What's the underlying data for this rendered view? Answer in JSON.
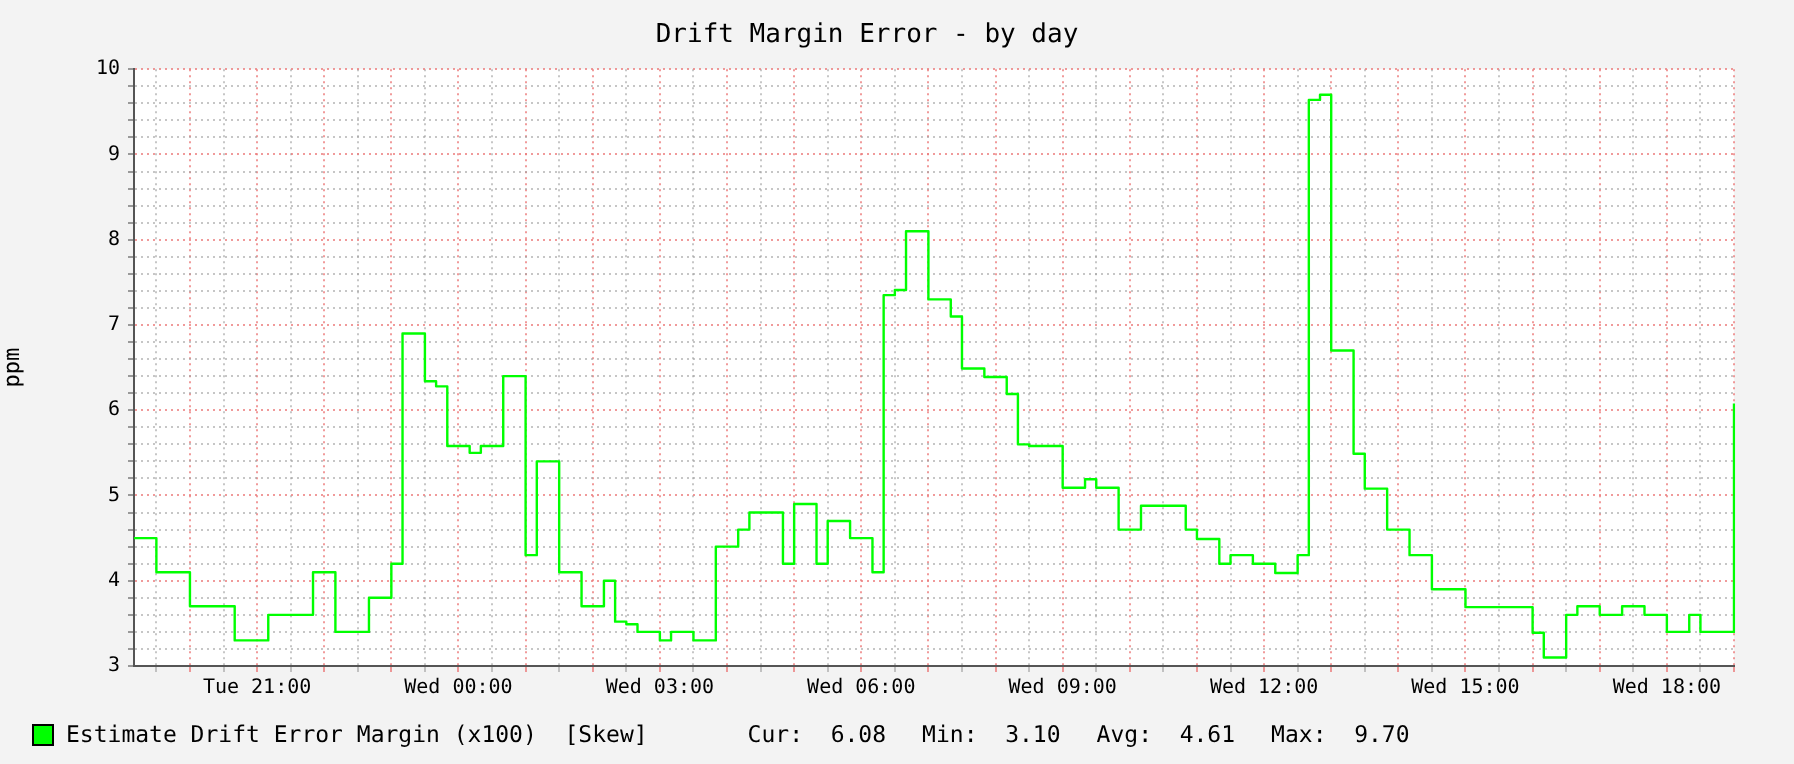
{
  "chart_data": {
    "type": "step",
    "title": "Drift Margin Error - by day",
    "ylabel": "ppm",
    "categories": [
      null,
      null,
      null,
      null,
      null,
      null,
      null,
      null,
      null,
      null,
      null,
      "Tue 21:00",
      null,
      null,
      null,
      null,
      null,
      null,
      null,
      null,
      null,
      null,
      null,
      null,
      null,
      null,
      null,
      null,
      null,
      "Wed 00:00",
      null,
      null,
      null,
      null,
      null,
      null,
      null,
      null,
      null,
      null,
      null,
      null,
      null,
      null,
      null,
      null,
      null,
      "Wed 03:00",
      null,
      null,
      null,
      null,
      null,
      null,
      null,
      null,
      null,
      null,
      null,
      null,
      null,
      null,
      null,
      null,
      null,
      "Wed 06:00",
      null,
      null,
      null,
      null,
      null,
      null,
      null,
      null,
      null,
      null,
      null,
      null,
      null,
      null,
      null,
      null,
      null,
      "Wed 09:00",
      null,
      null,
      null,
      null,
      null,
      null,
      null,
      null,
      null,
      null,
      null,
      null,
      null,
      null,
      null,
      null,
      null,
      "Wed 12:00",
      null,
      null,
      null,
      null,
      null,
      null,
      null,
      null,
      null,
      null,
      null,
      null,
      null,
      null,
      null,
      null,
      null,
      "Wed 15:00",
      null,
      null,
      null,
      null,
      null,
      null,
      null,
      null,
      null,
      null,
      null,
      null,
      null,
      null,
      null,
      null,
      null,
      "Wed 18:00",
      null,
      null,
      null,
      null,
      null,
      null
    ],
    "series": [
      {
        "name": "Estimate Drift Error Margin (x100)  [Skew]",
        "color": "#00ff00",
        "values": [
          4.5,
          4.5,
          4.1,
          4.1,
          4.1,
          3.7,
          3.7,
          3.7,
          3.7,
          3.3,
          3.3,
          3.3,
          3.6,
          3.6,
          3.6,
          3.6,
          4.1,
          4.1,
          3.4,
          3.4,
          3.4,
          3.8,
          3.8,
          4.2,
          6.9,
          6.9,
          6.34,
          6.28,
          5.58,
          5.58,
          5.5,
          5.58,
          5.58,
          6.4,
          6.4,
          4.3,
          5.4,
          5.4,
          4.1,
          4.1,
          3.7,
          3.7,
          4.0,
          3.52,
          3.49,
          3.4,
          3.4,
          3.3,
          3.4,
          3.4,
          3.3,
          3.3,
          4.4,
          4.4,
          4.6,
          4.8,
          4.8,
          4.8,
          4.2,
          4.9,
          4.9,
          4.2,
          4.7,
          4.7,
          4.5,
          4.5,
          4.1,
          7.35,
          7.41,
          8.1,
          8.1,
          7.3,
          7.3,
          7.1,
          6.49,
          6.49,
          6.39,
          6.39,
          6.19,
          5.6,
          5.58,
          5.58,
          5.58,
          5.09,
          5.09,
          5.19,
          5.09,
          5.09,
          4.6,
          4.6,
          4.88,
          4.88,
          4.88,
          4.88,
          4.6,
          4.49,
          4.49,
          4.2,
          4.3,
          4.3,
          4.2,
          4.2,
          4.09,
          4.09,
          4.3,
          9.64,
          9.7,
          6.7,
          6.7,
          5.49,
          5.08,
          5.08,
          4.6,
          4.6,
          4.3,
          4.3,
          3.9,
          3.9,
          3.9,
          3.69,
          3.69,
          3.69,
          3.69,
          3.69,
          3.69,
          3.39,
          3.1,
          3.1,
          3.6,
          3.7,
          3.7,
          3.6,
          3.6,
          3.7,
          3.7,
          3.6,
          3.6,
          3.4,
          3.4,
          3.6,
          3.4,
          3.4,
          3.4,
          6.08
        ]
      }
    ],
    "ylim": [
      3,
      10
    ],
    "yticks": [
      3,
      {
        "value": 3.2,
        "label": null
      },
      {
        "value": 3.4,
        "label": null
      },
      {
        "value": 3.6,
        "label": null
      },
      {
        "value": 3.8,
        "label": null
      },
      4,
      {
        "value": 4.2,
        "label": null
      },
      {
        "value": 4.4,
        "label": null
      },
      {
        "value": 4.6,
        "label": null
      },
      {
        "value": 4.8,
        "label": null
      },
      5,
      {
        "value": 5.2,
        "label": null
      },
      {
        "value": 5.4,
        "label": null
      },
      {
        "value": 5.6,
        "label": null
      },
      {
        "value": 5.8,
        "label": null
      },
      6,
      {
        "value": 6.2,
        "label": null
      },
      {
        "value": 6.4,
        "label": null
      },
      {
        "value": 6.6,
        "label": null
      },
      {
        "value": 6.8,
        "label": null
      },
      7,
      {
        "value": 7.2,
        "label": null
      },
      {
        "value": 7.4,
        "label": null
      },
      {
        "value": 7.6,
        "label": null
      },
      {
        "value": 7.8,
        "label": null
      },
      8,
      {
        "value": 8.2,
        "label": null
      },
      {
        "value": 8.4,
        "label": null
      },
      {
        "value": 8.6,
        "label": null
      },
      {
        "value": 8.8,
        "label": null
      },
      9,
      {
        "value": 9.2,
        "label": null
      },
      {
        "value": 9.4,
        "label": null
      },
      {
        "value": 9.6,
        "label": null
      },
      {
        "value": 9.8,
        "label": null
      },
      10
    ],
    "grid": true,
    "legend": "bottom left",
    "marker": "none",
    "line_style": "solid",
    "annotations": [
      "Cur:  6.08",
      "Min:  3.10",
      "Avg:  4.61",
      "Max:  9.70"
    ]
  }
}
